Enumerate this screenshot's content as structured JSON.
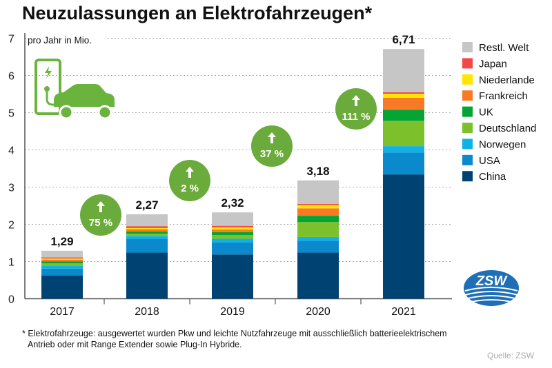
{
  "title": "Neuzulassungen an Elektrofahrzeugen*",
  "footnote": [
    "* Elektrofahrzeuge: ausgewertet wurden Pkw und leichte Nutzfahrzeuge mit ausschließlich batterieelektrischem",
    "Antrieb oder mit Range Extender sowie Plug-In Hybride."
  ],
  "source": "Quelle: ZSW",
  "logo_text": "ZSW",
  "chart_data": {
    "type": "bar",
    "stacked": true,
    "ylabel": "pro Jahr in Mio.",
    "ylim": [
      0,
      7
    ],
    "yticks": [
      "0",
      "1",
      "2",
      "3",
      "4",
      "5",
      "6",
      "7"
    ],
    "grid": true,
    "legend_position": "right",
    "categories": [
      "2017",
      "2018",
      "2019",
      "2020",
      "2021"
    ],
    "totals": [
      "1,29",
      "2,27",
      "2,32",
      "3,18",
      "6,71"
    ],
    "growth": [
      "75 %",
      "2 %",
      "37 %",
      "111 %"
    ],
    "growth_color": "#6aab3c",
    "series": [
      {
        "name": "China",
        "color": "#004373",
        "values": [
          0.62,
          1.24,
          1.19,
          1.24,
          3.34
        ]
      },
      {
        "name": "USA",
        "color": "#0a89cc",
        "values": [
          0.19,
          0.37,
          0.32,
          0.32,
          0.59
        ]
      },
      {
        "name": "Norwegen",
        "color": "#10b2e6",
        "values": [
          0.07,
          0.08,
          0.1,
          0.1,
          0.17
        ]
      },
      {
        "name": "Deutschland",
        "color": "#7cc12c",
        "values": [
          0.07,
          0.06,
          0.1,
          0.4,
          0.68
        ]
      },
      {
        "name": "UK",
        "color": "#04a535",
        "values": [
          0.05,
          0.06,
          0.08,
          0.17,
          0.3
        ]
      },
      {
        "name": "Frankreich",
        "color": "#f97a25",
        "values": [
          0.05,
          0.06,
          0.07,
          0.2,
          0.32
        ]
      },
      {
        "name": "Niederlande",
        "color": "#ffe500",
        "values": [
          0.03,
          0.03,
          0.06,
          0.09,
          0.11
        ]
      },
      {
        "name": "Japan",
        "color": "#f24848",
        "values": [
          0.03,
          0.05,
          0.04,
          0.03,
          0.04
        ]
      },
      {
        "name": "Restl. Welt",
        "color": "#c6c6c6",
        "values": [
          0.18,
          0.32,
          0.36,
          0.63,
          1.16
        ]
      }
    ]
  }
}
